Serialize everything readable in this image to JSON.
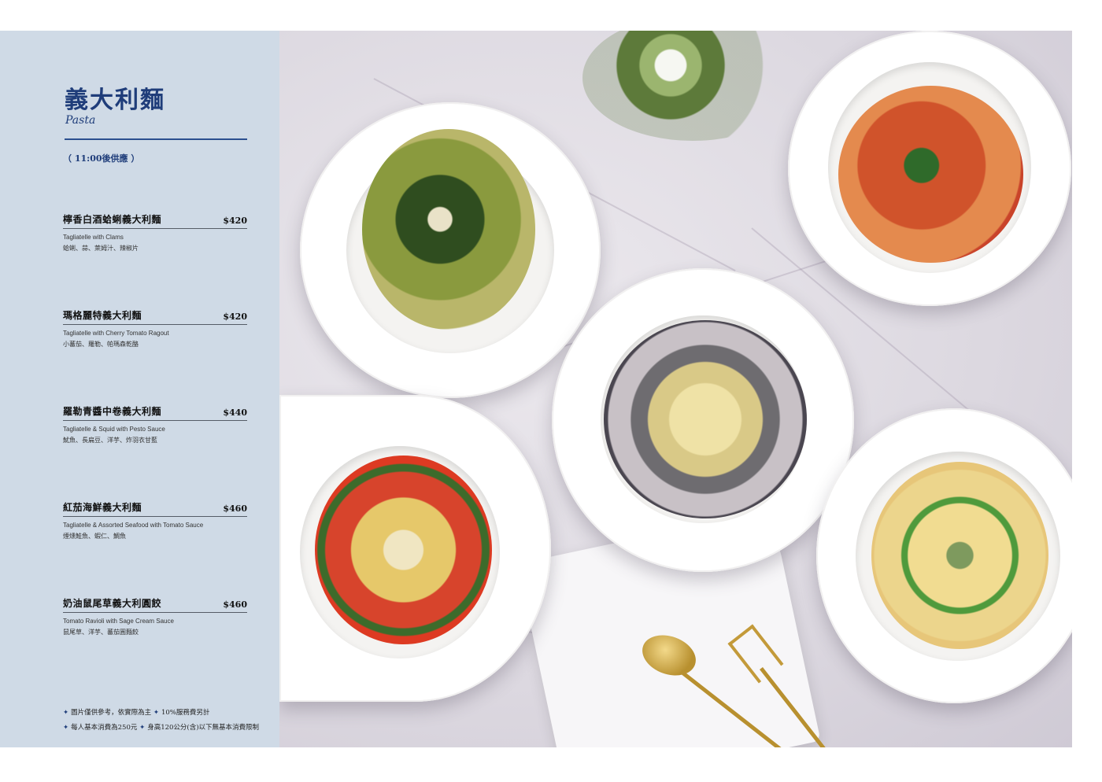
{
  "header": {
    "title": "義大利麵",
    "subtitle": "Pasta",
    "hours": "（ 11:00後供應 ）"
  },
  "items": [
    {
      "name": "檸香白酒蛤蜊義大利麵",
      "price": "$420",
      "en": "Tagliatelle with Clams",
      "desc": "蛤蜊、蒜、萊姆汁、辣椒片"
    },
    {
      "name": "瑪格麗特義大利麵",
      "price": "$420",
      "en": "Tagliatelle with Cherry Tomato Ragout",
      "desc": "小蕃茄、羅勒、帕瑪森乾酪"
    },
    {
      "name": "羅勒青醬中卷義大利麵",
      "price": "$440",
      "en": "Tagliatelle & Squid with Pesto Sauce",
      "desc": "魷魚、長扁豆、洋芋、炸羽衣甘藍"
    },
    {
      "name": "紅茄海鮮義大利麵",
      "price": "$460",
      "en": "Tagliatelle & Assorted Seafood with Tomato Sauce",
      "desc": "煙燻鮭魚、蝦仁、鯛魚"
    },
    {
      "name": "奶油鼠尾草義大利圓餃",
      "price": "$460",
      "en": "Tomato Ravioli with Sage Cream Sauce",
      "desc": "鼠尾草、洋芋、蕃茄圓麵餃"
    }
  ],
  "notes": [
    "圖片僅供參考，依實際為主",
    "10%服務費另計",
    "每人基本消費為250元",
    "身高120公分(含)以下無基本消費限制"
  ],
  "notes_marker": "✦",
  "colors": {
    "panel": "#cfdae6",
    "accent": "#1f3d7a"
  }
}
